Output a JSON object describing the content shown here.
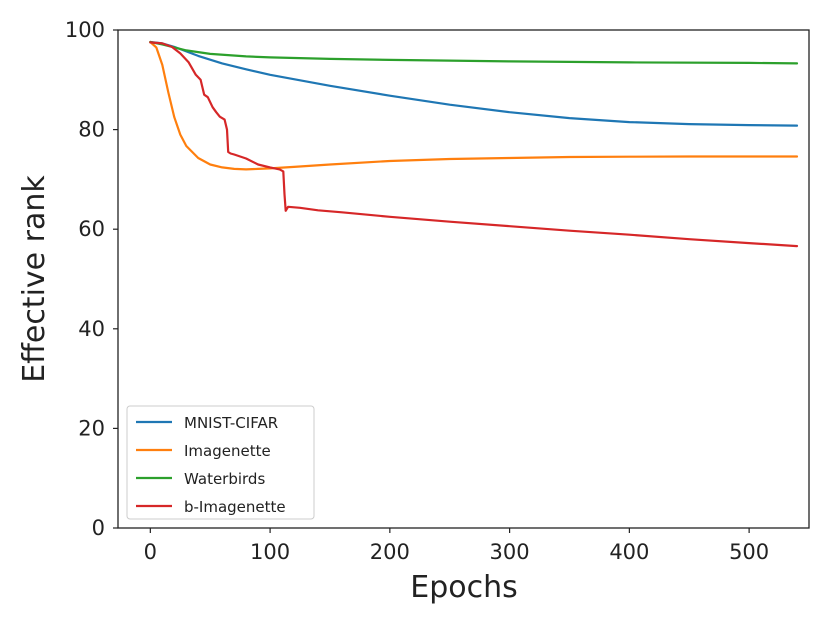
{
  "chart_data": {
    "type": "line",
    "title": "",
    "xlabel": "Epochs",
    "ylabel": "Effective rank",
    "xlim": [
      -27,
      550
    ],
    "ylim": [
      0,
      100
    ],
    "xticks": [
      0,
      100,
      200,
      300,
      400,
      500
    ],
    "yticks": [
      0,
      20,
      40,
      60,
      80,
      100
    ],
    "xtick_labels": [
      "0",
      "100",
      "200",
      "300",
      "400",
      "500"
    ],
    "ytick_labels": [
      "0",
      "20",
      "40",
      "60",
      "80",
      "100"
    ],
    "grid": false,
    "legend_position": "lower-left",
    "series": [
      {
        "name": "MNIST-CIFAR",
        "color": "#1f77b4",
        "x": [
          0,
          10,
          20,
          30,
          40,
          60,
          80,
          100,
          150,
          200,
          250,
          300,
          350,
          400,
          450,
          500,
          540
        ],
        "y": [
          97.6,
          97.3,
          96.6,
          95.7,
          94.8,
          93.3,
          92.1,
          91.0,
          88.8,
          86.8,
          85.0,
          83.5,
          82.3,
          81.5,
          81.1,
          80.9,
          80.8
        ]
      },
      {
        "name": "Imagenette",
        "color": "#ff7f0e",
        "x": [
          0,
          5,
          10,
          15,
          20,
          25,
          30,
          40,
          50,
          60,
          70,
          80,
          90,
          100,
          120,
          150,
          200,
          250,
          300,
          350,
          400,
          450,
          500,
          540
        ],
        "y": [
          97.6,
          96.5,
          93.0,
          87.5,
          82.5,
          79.0,
          76.7,
          74.3,
          73.0,
          72.4,
          72.1,
          72.0,
          72.1,
          72.2,
          72.5,
          73.0,
          73.7,
          74.1,
          74.3,
          74.5,
          74.55,
          74.6,
          74.6,
          74.6
        ]
      },
      {
        "name": "Waterbirds",
        "color": "#2ca02c",
        "x": [
          0,
          10,
          20,
          30,
          50,
          80,
          100,
          150,
          200,
          300,
          400,
          500,
          540
        ],
        "y": [
          97.6,
          97.1,
          96.5,
          95.9,
          95.2,
          94.7,
          94.5,
          94.2,
          94.0,
          93.7,
          93.5,
          93.4,
          93.3
        ]
      },
      {
        "name": "b-Imagenette",
        "color": "#d62728",
        "x": [
          0,
          10,
          18,
          25,
          32,
          38,
          42,
          45,
          48,
          52,
          55,
          58,
          62,
          64,
          65,
          67,
          70,
          80,
          90,
          100,
          108,
          111,
          112,
          113,
          115,
          125,
          140,
          160,
          200,
          250,
          300,
          350,
          400,
          450,
          500,
          540
        ],
        "y": [
          97.5,
          97.3,
          96.6,
          95.3,
          93.5,
          91.0,
          90.0,
          87.0,
          86.5,
          84.5,
          83.5,
          82.6,
          82.0,
          80.0,
          75.5,
          75.2,
          75.0,
          74.2,
          73.0,
          72.4,
          72.0,
          71.6,
          67.0,
          63.7,
          64.5,
          64.3,
          63.8,
          63.4,
          62.5,
          61.5,
          60.6,
          59.7,
          58.9,
          58.0,
          57.2,
          56.6
        ]
      }
    ]
  }
}
